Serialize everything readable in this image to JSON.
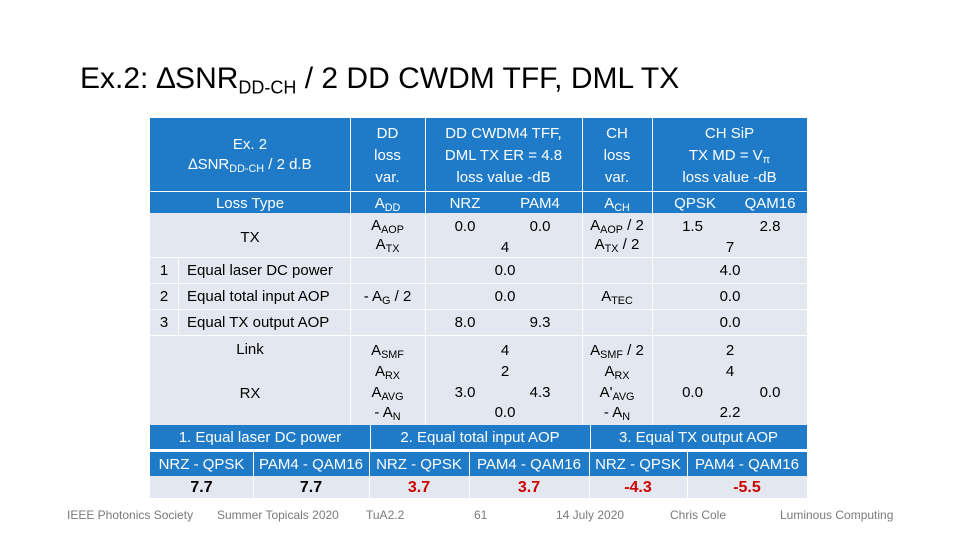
{
  "title": {
    "prefix": "Ex.2: ∆SNR",
    "sub": "DD-CH",
    "suffix": " / 2   DD CWDM TFF, DML TX"
  },
  "header": {
    "c0_l1": "Ex. 2",
    "c0_l2a": "∆SNR",
    "c0_l2sub": "DD-CH",
    "c0_l2b": " / 2  d.B",
    "c1": [
      "DD",
      "loss",
      "var."
    ],
    "c2": [
      "DD CWDM4 TFF,",
      "DML TX ER = 4.8",
      "loss value -dB"
    ],
    "c3": [
      "CH",
      "loss",
      "var."
    ],
    "c4": [
      "CH SiP",
      "TX MD = V",
      "loss value -dB"
    ],
    "c4_pi": "π"
  },
  "losstype": {
    "label": "Loss Type",
    "a_dd": "A",
    "a_dd_sub": "DD",
    "nrz": "NRZ",
    "pam4": "PAM4",
    "a_ch": "A",
    "a_ch_sub": "CH",
    "qpsk": "QPSK",
    "qam16": "QAM16"
  },
  "tx": {
    "label": "TX",
    "a_aop": "A",
    "a_aop_sub": "AOP",
    "a_tx": "A",
    "a_tx_sub": "TX",
    "nrz_v": "0.0",
    "pam4_v": "0.0",
    "mid_v": "4",
    "ch_aop": "A",
    "ch_aop_sub": "AOP",
    "ch_aop_div": " / 2",
    "ch_tx": "A",
    "ch_tx_sub": "TX",
    "ch_tx_div": " / 2",
    "qpsk_v": "1.5",
    "qam16_v": "2.8",
    "ch_mid": "7"
  },
  "rows": [
    {
      "num": "1",
      "label": "Equal laser DC power",
      "dd_val": "0.0",
      "ch_val": "4.0"
    },
    {
      "num": "2",
      "label": "Equal total input AOP",
      "dd_var_a": "- A",
      "dd_var_sub": "G",
      "dd_var_b": " / 2",
      "dd_val": "0.0",
      "ch_var": "A",
      "ch_var_sub": "TEC",
      "ch_val": "0.0"
    },
    {
      "num": "3",
      "label": "Equal TX output AOP",
      "nrz_v": "8.0",
      "pam4_v": "9.3",
      "ch_val": "0.0"
    }
  ],
  "link": {
    "label": "Link"
  },
  "rx": {
    "label": "RX",
    "dd_vars": [
      [
        "A",
        "SMF"
      ],
      [
        "A",
        "RX"
      ],
      [
        "A",
        "AVG"
      ],
      [
        "- A",
        "N"
      ]
    ],
    "dd_mid1": "4",
    "dd_mid2": "2",
    "dd_nrz": "3.0",
    "dd_pam4": "4.3",
    "dd_mid3": "0.0",
    "ch_vars": [
      [
        "A",
        "SMF",
        " / 2"
      ],
      [
        "A",
        "RX",
        ""
      ],
      [
        "A'",
        "AVG",
        ""
      ],
      [
        "- A",
        "N",
        ""
      ]
    ],
    "ch_mid1": "2",
    "ch_mid2": "4",
    "ch_qpsk": "0.0",
    "ch_qam16": "0.0",
    "ch_mid3": "2.2"
  },
  "scenarios": [
    "1. Equal laser DC power",
    "2. Equal total input AOP",
    "3. Equal TX output AOP"
  ],
  "compare": [
    "NRZ - QPSK",
    "PAM4 - QAM16",
    "NRZ - QPSK",
    "PAM4 - QAM16",
    "NRZ - QPSK",
    "PAM4 - QAM16"
  ],
  "results": [
    "7.7",
    "7.7",
    "3.7",
    "3.7",
    "-4.3",
    "-5.5"
  ],
  "colors": {
    "header_blue": "#1f7bc8",
    "row_gray": "#e3e7ef",
    "result_red": "#d00000"
  },
  "footer": [
    "IEEE Photonics Society",
    "Summer Topicals 2020",
    "TuA2.2",
    "61",
    "14 July 2020",
    "Chris Cole",
    "Luminous Computing"
  ]
}
